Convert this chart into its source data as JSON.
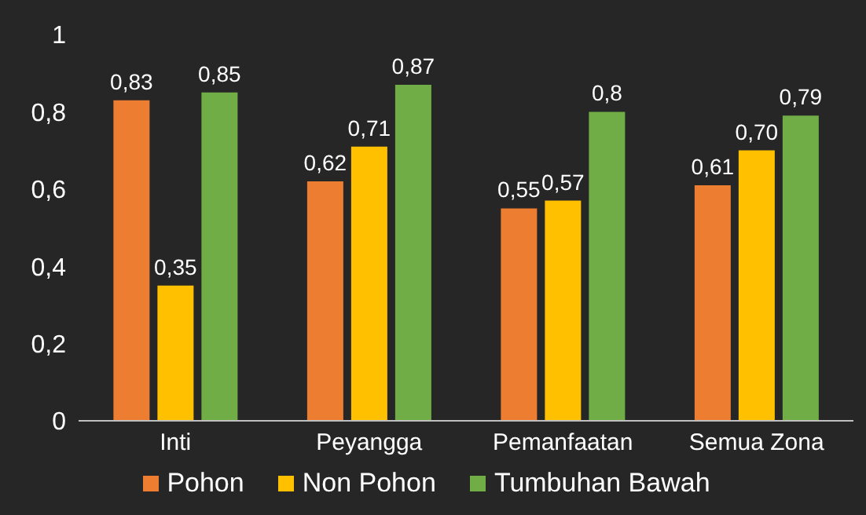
{
  "chart_data": {
    "type": "bar",
    "categories": [
      "Inti",
      "Peyangga",
      "Pemanfaatan",
      "Semua Zona"
    ],
    "series": [
      {
        "name": "Pohon",
        "color": "#ed7d31",
        "values": [
          0.83,
          0.62,
          0.55,
          0.61
        ],
        "value_labels": [
          "0,83",
          "0,62",
          "0,55",
          "0,61"
        ]
      },
      {
        "name": "Non Pohon",
        "color": "#ffc000",
        "values": [
          0.35,
          0.71,
          0.57,
          0.7
        ],
        "value_labels": [
          "0,35",
          "0,71",
          "0,57",
          "0,70"
        ]
      },
      {
        "name": "Tumbuhan Bawah",
        "color": "#70ad47",
        "values": [
          0.85,
          0.87,
          0.8,
          0.79
        ],
        "value_labels": [
          "0,85",
          "0,87",
          "0,8",
          "0,79"
        ]
      }
    ],
    "ylim": [
      0,
      1
    ],
    "yticks": [
      0,
      {
        "value": 0.2,
        "label": "0,2"
      },
      {
        "value": 0.4,
        "label": "0,4"
      },
      {
        "value": 0.6,
        "label": "0,6"
      },
      {
        "value": 0.8,
        "label": "0,8"
      },
      1
    ],
    "grid": false,
    "legend": "bottom"
  }
}
